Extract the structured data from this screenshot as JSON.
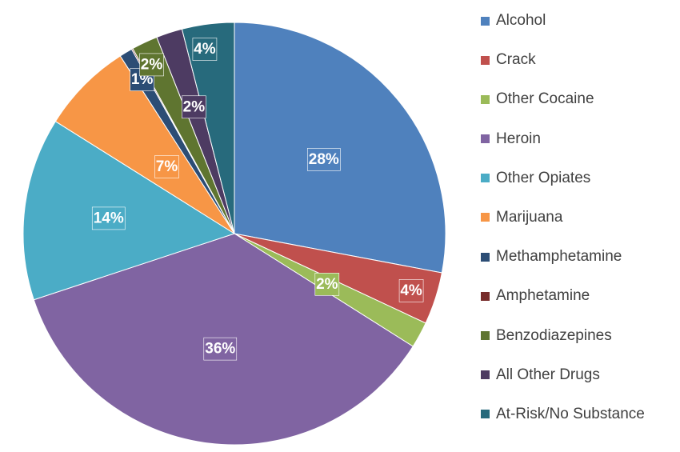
{
  "chart_data": {
    "type": "pie",
    "title": "",
    "legend_position": "right",
    "slices": [
      {
        "name": "Alcohol",
        "value": 28,
        "label": "28%",
        "color": "#4F81BD"
      },
      {
        "name": "Crack",
        "value": 4,
        "label": "4%",
        "color": "#C0504D"
      },
      {
        "name": "Other Cocaine",
        "value": 2,
        "label": "2%",
        "color": "#9BBB59"
      },
      {
        "name": "Heroin",
        "value": 36,
        "label": "36%",
        "color": "#8064A2"
      },
      {
        "name": "Other Opiates",
        "value": 14,
        "label": "14%",
        "color": "#4BACC6"
      },
      {
        "name": "Marijuana",
        "value": 7,
        "label": "7%",
        "color": "#F79646"
      },
      {
        "name": "Methamphetamine",
        "value": 1,
        "label": "1%",
        "color": "#2C4D75"
      },
      {
        "name": "Amphetamine",
        "value": 0.1,
        "label": "",
        "color": "#772C2A"
      },
      {
        "name": "Benzodiazepines",
        "value": 2,
        "label": "2%",
        "color": "#5F7530"
      },
      {
        "name": "All Other Drugs",
        "value": 2,
        "label": "2%",
        "color": "#4D3B62"
      },
      {
        "name": "At-Risk/No Substance",
        "value": 4,
        "label": "4%",
        "color": "#276A7C"
      }
    ]
  }
}
